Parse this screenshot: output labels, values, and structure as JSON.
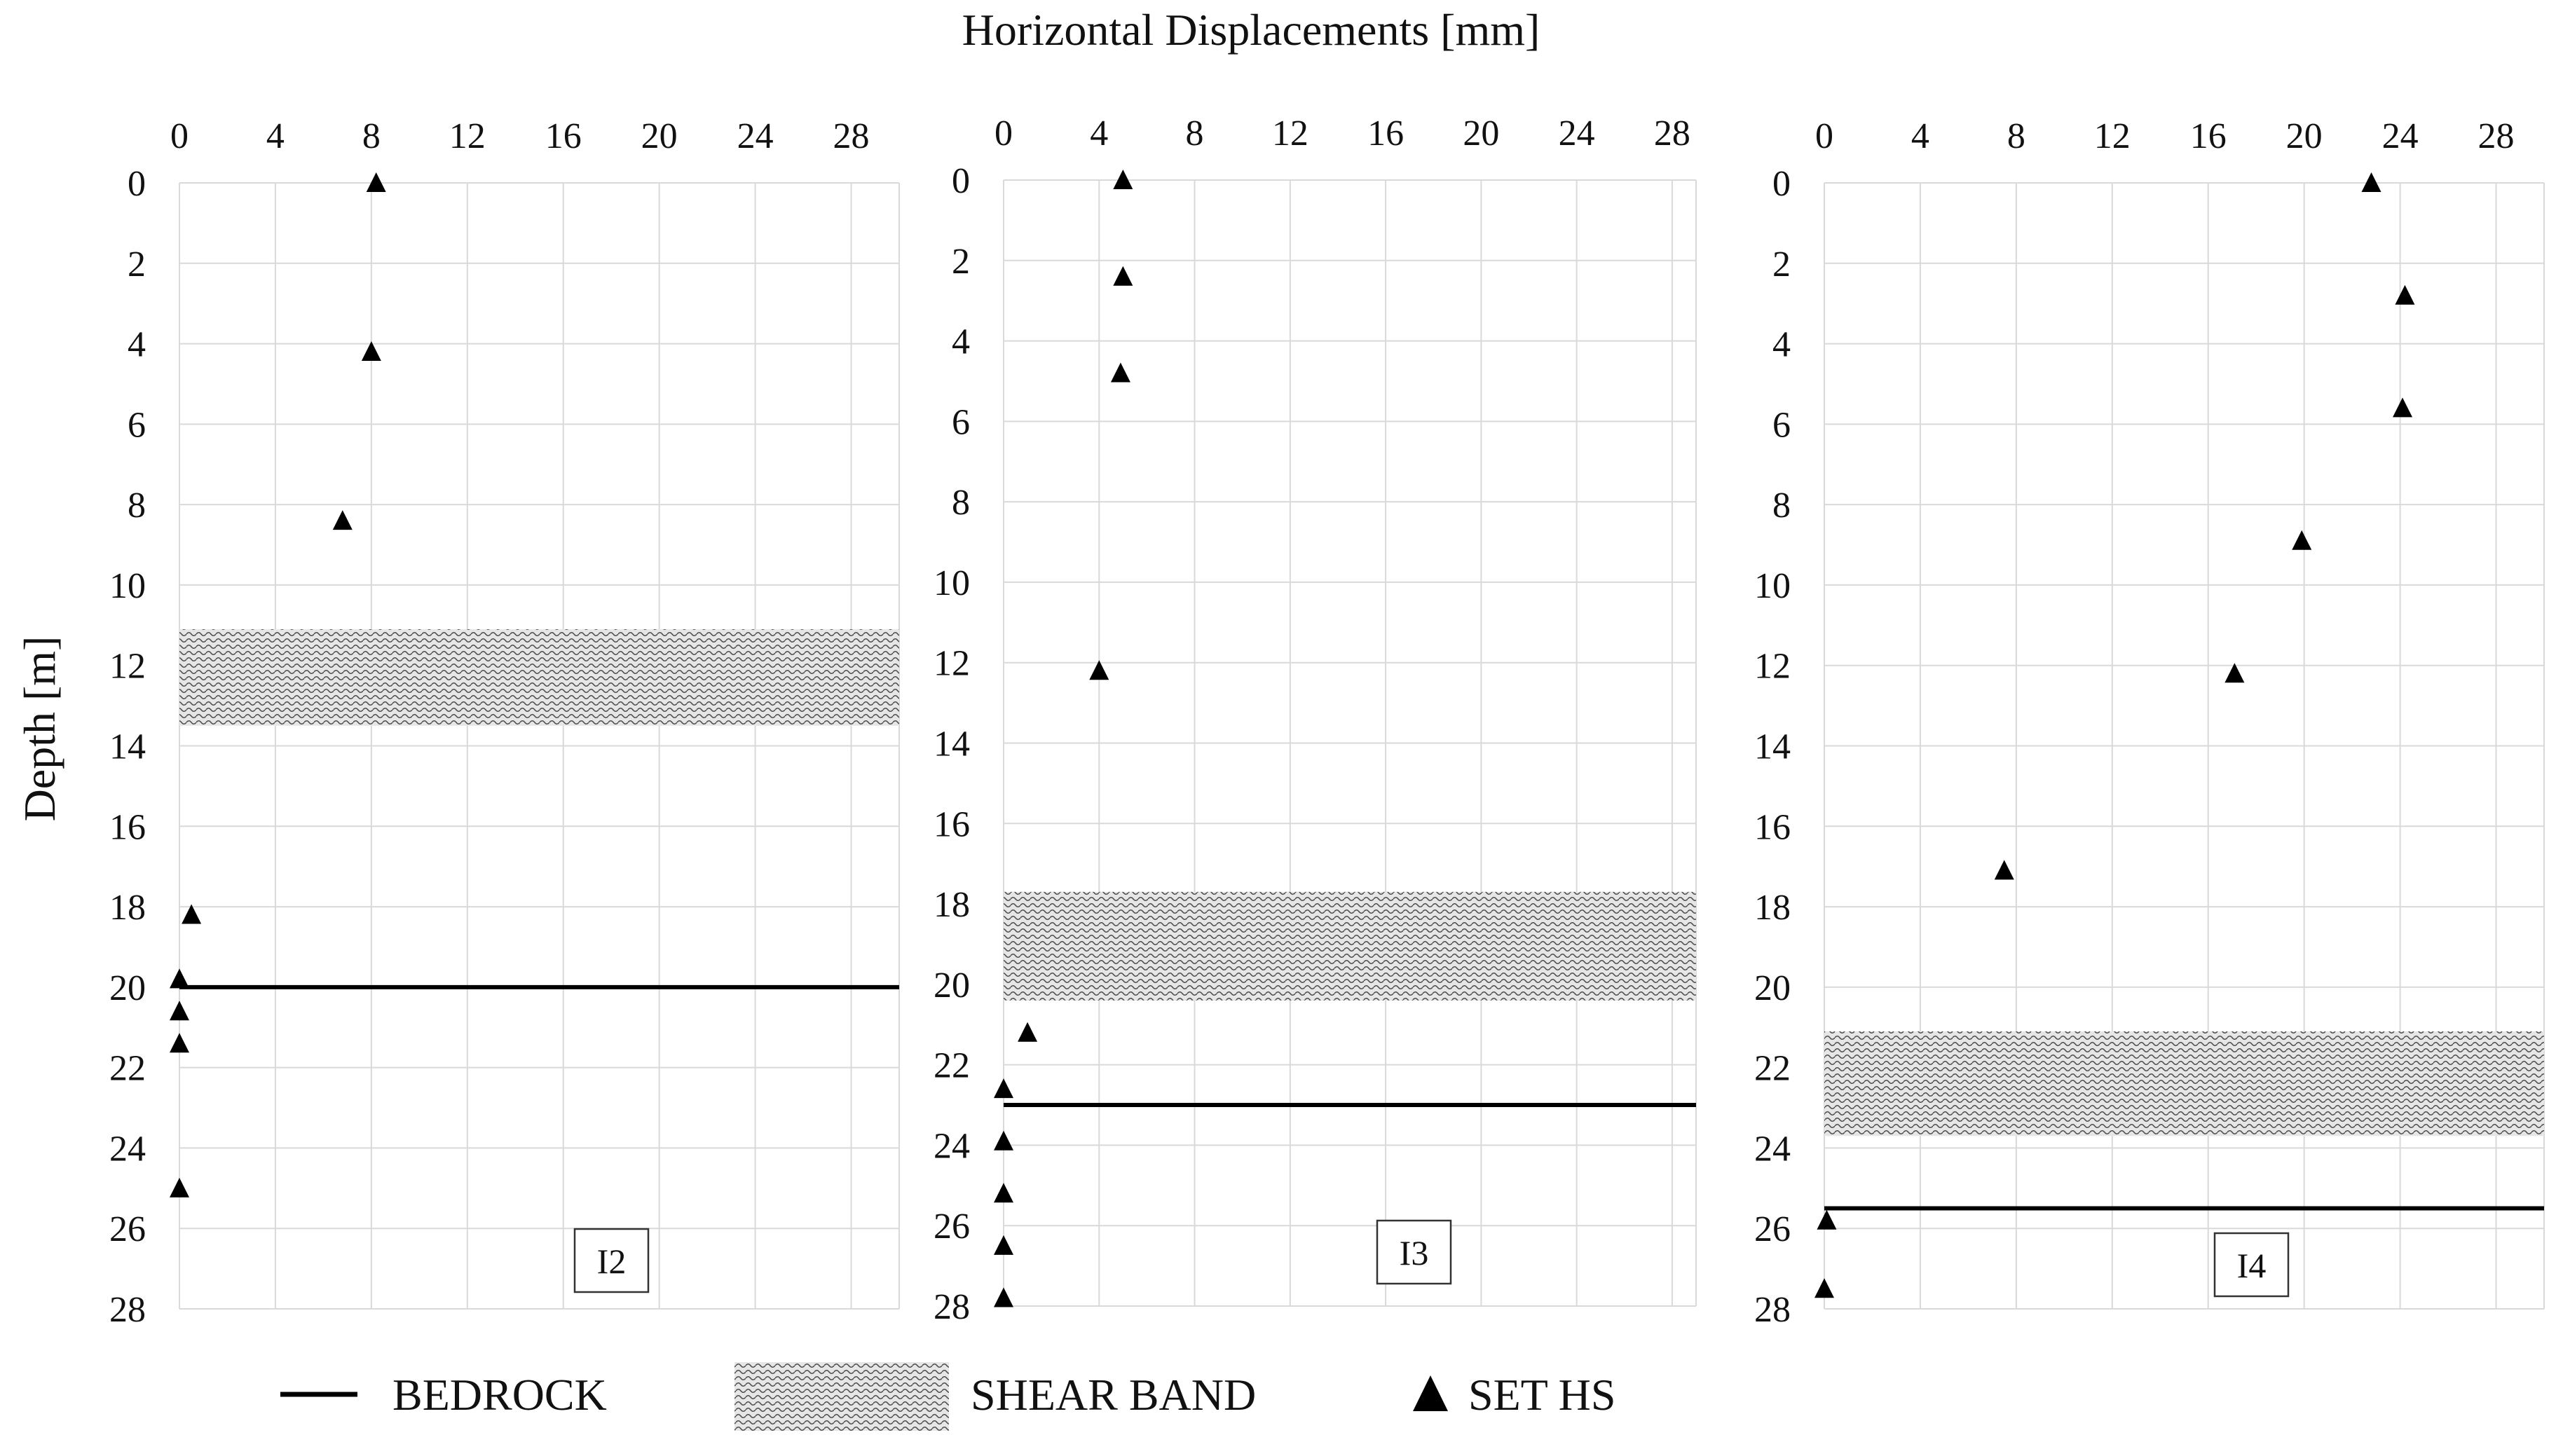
{
  "figure": {
    "title": "Horizontal Displacements [mm]",
    "y_label": "Depth [m]"
  },
  "legend": {
    "items": [
      {
        "type": "line",
        "label": "BEDROCK"
      },
      {
        "type": "hatch",
        "label": "SHEAR BAND"
      },
      {
        "type": "marker",
        "label": "SET HS"
      }
    ]
  },
  "colors": {
    "grid": "#d9d9d9",
    "marker": "#000000",
    "bedrock": "#000000",
    "hatch_stroke": "#555555",
    "shear_band_bg": "#e6e6e6"
  },
  "chart_data": [
    {
      "type": "scatter",
      "panel_label": "I2",
      "x_ticks": [
        0,
        4,
        8,
        12,
        16,
        20,
        24,
        28
      ],
      "y_ticks": [
        0,
        2,
        4,
        6,
        8,
        10,
        12,
        14,
        16,
        18,
        20,
        22,
        24,
        26,
        28
      ],
      "xlim": [
        0,
        30
      ],
      "ylim": [
        0,
        28
      ],
      "bedrock_depth": 20,
      "shear_band": [
        11.1,
        13.5
      ],
      "series": [
        {
          "name": "SET HS",
          "x": [
            8.2,
            8.0,
            6.8,
            0.5,
            0.0,
            0.0,
            0.0,
            0.0
          ],
          "y": [
            0,
            4.2,
            8.4,
            18.2,
            19.8,
            20.6,
            21.4,
            25.0
          ]
        }
      ]
    },
    {
      "type": "scatter",
      "panel_label": "I3",
      "x_ticks": [
        0,
        4,
        8,
        12,
        16,
        20,
        24,
        28
      ],
      "y_ticks": [
        0,
        2,
        4,
        6,
        8,
        10,
        12,
        14,
        16,
        18,
        20,
        22,
        24,
        26,
        28
      ],
      "xlim": [
        0,
        29
      ],
      "ylim": [
        0,
        28
      ],
      "bedrock_depth": 23,
      "shear_band": [
        17.7,
        20.4
      ],
      "series": [
        {
          "name": "SET HS",
          "x": [
            5.0,
            5.0,
            4.9,
            4.0,
            1.0,
            0.0,
            0.0,
            0.0,
            0.0,
            0.0
          ],
          "y": [
            0,
            2.4,
            4.8,
            12.2,
            21.2,
            22.6,
            23.9,
            25.2,
            26.5,
            27.8
          ]
        }
      ]
    },
    {
      "type": "scatter",
      "panel_label": "I4",
      "x_ticks": [
        0,
        4,
        8,
        12,
        16,
        20,
        24,
        28
      ],
      "y_ticks": [
        0,
        2,
        4,
        6,
        8,
        10,
        12,
        14,
        16,
        18,
        20,
        22,
        24,
        26,
        28
      ],
      "xlim": [
        0,
        30
      ],
      "ylim": [
        0,
        28
      ],
      "bedrock_depth": 25.5,
      "shear_band": [
        21.1,
        23.7
      ],
      "series": [
        {
          "name": "SET HS",
          "x": [
            22.8,
            24.2,
            24.1,
            19.9,
            17.1,
            7.5,
            0.1,
            0.0
          ],
          "y": [
            0,
            2.8,
            5.6,
            8.9,
            12.2,
            17.1,
            25.8,
            27.5
          ]
        }
      ]
    }
  ]
}
